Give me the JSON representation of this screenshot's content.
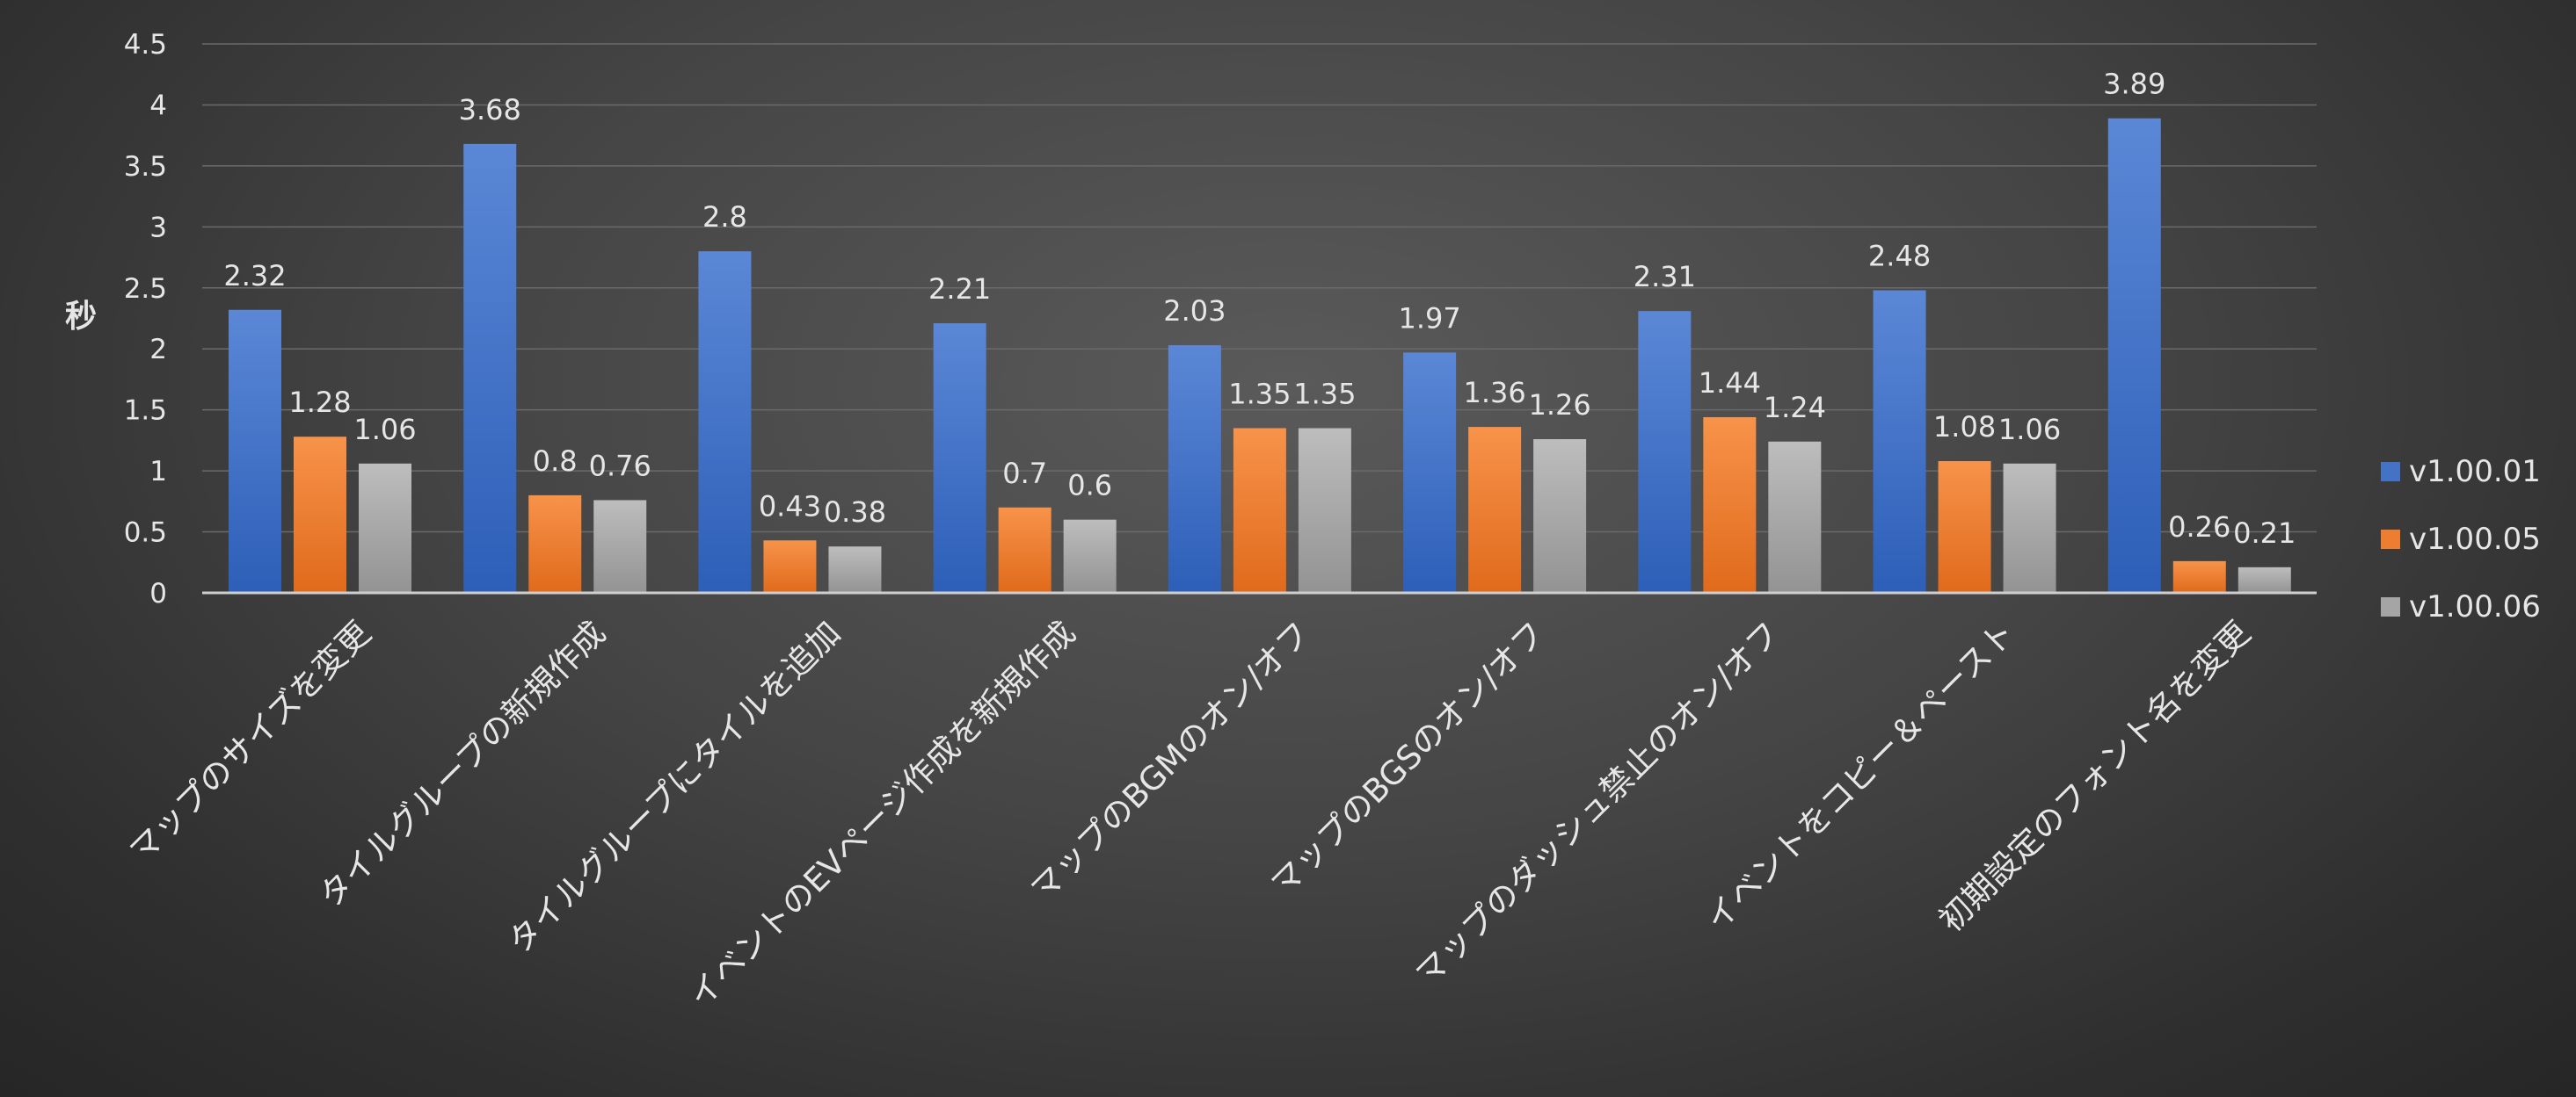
{
  "chart_data": {
    "type": "bar",
    "ylabel": "秒",
    "ylim": [
      0,
      4.5
    ],
    "yticks": [
      "0",
      "0.5",
      "1",
      "1.5",
      "2",
      "2.5",
      "3",
      "3.5",
      "4",
      "4.5"
    ],
    "grid": true,
    "legend_position": "right",
    "categories": [
      "マップのサイズを変更",
      "タイルグループの新規作成",
      "タイルグループにタイルを追加",
      "イベントのEVページ作成を新規作成",
      "マップのBGMのオン/オフ",
      "マップのBGSのオン/オフ",
      "マップのダッシュ禁止のオン/オフ",
      "イベントをコピー＆ペースト",
      "初期設定のフォント名を変更"
    ],
    "series": [
      {
        "name": "v1.00.01",
        "color": "#4472c4",
        "values": [
          2.32,
          3.68,
          2.8,
          2.21,
          2.03,
          1.97,
          2.31,
          2.48,
          3.89
        ]
      },
      {
        "name": "v1.00.05",
        "color": "#ed7d31",
        "values": [
          1.28,
          0.8,
          0.43,
          0.7,
          1.35,
          1.36,
          1.44,
          1.08,
          0.26
        ]
      },
      {
        "name": "v1.00.06",
        "color": "#a5a5a5",
        "values": [
          1.06,
          0.76,
          0.38,
          0.6,
          1.35,
          1.26,
          1.24,
          1.06,
          0.21
        ]
      }
    ]
  }
}
